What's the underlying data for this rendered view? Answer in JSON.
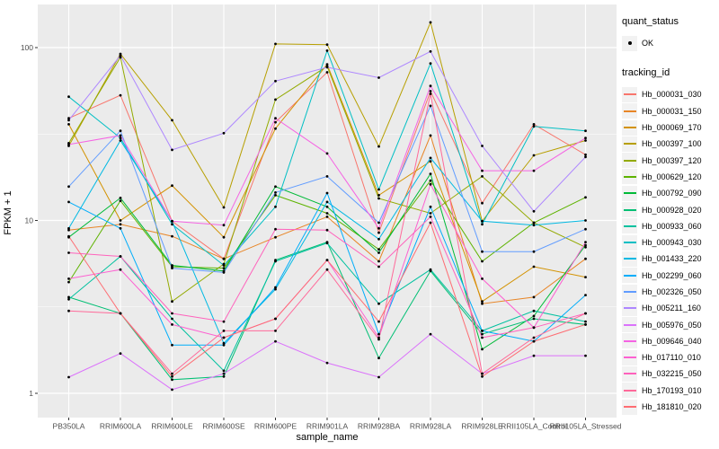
{
  "style": {
    "panel_bg": "#EBEBEB",
    "grid_color": "#FFFFFF",
    "tick_label_color": "#4D4D4D",
    "axis_title_color": "#000000",
    "point_color": "#000000",
    "legend_key_bg": "#F2F2F2"
  },
  "legend": {
    "quant_status_title": "quant_status",
    "quant_status_items": [
      {
        "label": "OK"
      }
    ],
    "tracking_id_title": "tracking_id"
  },
  "chart_data": {
    "type": "line",
    "title": "",
    "xlabel": "sample_name",
    "ylabel": "FPKM + 1",
    "yscale": "log10",
    "yticks": [
      1,
      10,
      100
    ],
    "ytick_labels": [
      "1",
      "10",
      "100"
    ],
    "ylim": [
      0.72,
      178
    ],
    "grid": true,
    "legend_position": "right",
    "point_marker": "small black dot on every value",
    "categories": [
      "PB350LA",
      "RRIM600LA",
      "RRIM600LE",
      "RRIM600SE",
      "RRIM600PE",
      "RRIM901LA",
      "RRIM928BA",
      "RRIM928LA",
      "RRIM928LE",
      "RRII105LA_Control",
      "RRII105LA_Stressed"
    ],
    "series": [
      {
        "name": "Hb_000031_030",
        "color": "#F8766D",
        "values": [
          39,
          53,
          9.9,
          6.0,
          37,
          72,
          8.5,
          56,
          12.6,
          36,
          24
        ]
      },
      {
        "name": "Hb_000031_150",
        "color": "#E88526",
        "values": [
          8.8,
          9.5,
          8.1,
          6.0,
          8.0,
          10.5,
          5.8,
          31,
          3.3,
          3.6,
          6.0
        ]
      },
      {
        "name": "Hb_000069_170",
        "color": "#D39200",
        "values": [
          36,
          10,
          15.9,
          8.0,
          34,
          80,
          14,
          22,
          3.4,
          5.4,
          4.7
        ]
      },
      {
        "name": "Hb_000397_100",
        "color": "#B79F00",
        "values": [
          27,
          92,
          38,
          11.9,
          105,
          104,
          26.8,
          140,
          9.9,
          23.8,
          29
        ]
      },
      {
        "name": "Hb_000397_120",
        "color": "#93AA00",
        "values": [
          28,
          88,
          3.4,
          5.6,
          50,
          78,
          13.4,
          11,
          18,
          9.7,
          7.0
        ]
      },
      {
        "name": "Hb_000629_120",
        "color": "#5EB300",
        "values": [
          4.4,
          13,
          5.4,
          5.3,
          14,
          11,
          6.8,
          17,
          5.8,
          9.7,
          13.6
        ]
      },
      {
        "name": "Hb_000792_090",
        "color": "#00BA38",
        "values": [
          8.0,
          13.5,
          5.5,
          5.1,
          15.7,
          12,
          6.5,
          18.6,
          1.8,
          2.8,
          7.2
        ]
      },
      {
        "name": "Hb_000928_020",
        "color": "#00BF74",
        "values": [
          3.6,
          2.9,
          1.2,
          1.25,
          5.9,
          7.5,
          1.6,
          5.1,
          2.2,
          2.7,
          2.5
        ]
      },
      {
        "name": "Hb_000933_060",
        "color": "#00C19F",
        "values": [
          3.5,
          6.2,
          2.7,
          1.35,
          5.8,
          7.4,
          3.3,
          5.2,
          2.3,
          3.0,
          2.6
        ]
      },
      {
        "name": "Hb_000943_030",
        "color": "#00BFC4",
        "values": [
          52,
          30,
          9.5,
          5.5,
          12,
          96,
          15.1,
          81,
          9.5,
          35,
          33
        ]
      },
      {
        "name": "Hb_001433_220",
        "color": "#00B9E3",
        "values": [
          9.0,
          29,
          9.9,
          1.95,
          4.0,
          12.8,
          7.8,
          23,
          9.9,
          9.4,
          10
        ]
      },
      {
        "name": "Hb_002299_060",
        "color": "#00ADFA",
        "values": [
          12.8,
          9.0,
          1.9,
          1.9,
          4.1,
          14.4,
          2.2,
          12,
          2.3,
          2.0,
          3.7
        ]
      },
      {
        "name": "Hb_002326_050",
        "color": "#619CFF",
        "values": [
          15.7,
          33,
          5.3,
          5.0,
          14.5,
          18,
          9.7,
          46,
          6.6,
          6.6,
          8.9
        ]
      },
      {
        "name": "Hb_005211_160",
        "color": "#AE87FF",
        "values": [
          38,
          90,
          25.6,
          32,
          64,
          77,
          67,
          95,
          27,
          11.3,
          23.3
        ]
      },
      {
        "name": "Hb_005976_050",
        "color": "#DB72FB",
        "values": [
          1.24,
          1.7,
          1.05,
          1.3,
          2.0,
          1.5,
          1.24,
          2.2,
          1.3,
          1.65,
          1.65
        ]
      },
      {
        "name": "Hb_009646_040",
        "color": "#F564E3",
        "values": [
          27.5,
          31,
          9.9,
          9.4,
          39,
          24.4,
          9.0,
          60,
          19.4,
          19.4,
          30
        ]
      },
      {
        "name": "Hb_017110_010",
        "color": "#FD61D1",
        "values": [
          4.6,
          5.2,
          2.5,
          2.1,
          2.7,
          5.9,
          2.1,
          16.2,
          4.6,
          2.4,
          7.5
        ]
      },
      {
        "name": "Hb_032215_050",
        "color": "#FF62BC",
        "values": [
          6.5,
          6.2,
          2.9,
          2.6,
          8.9,
          8.8,
          5.4,
          10.5,
          2.1,
          2.4,
          2.9
        ]
      },
      {
        "name": "Hb_170193_010",
        "color": "#FF6A9A",
        "values": [
          3.0,
          2.9,
          1.3,
          2.3,
          2.3,
          5.2,
          2.05,
          54,
          1.3,
          2.1,
          2.9
        ]
      },
      {
        "name": "Hb_181810_020",
        "color": "#FE6D73",
        "values": [
          8.1,
          2.9,
          1.25,
          2.1,
          2.7,
          5.9,
          2.6,
          9.7,
          1.25,
          2.0,
          2.5
        ]
      }
    ]
  }
}
